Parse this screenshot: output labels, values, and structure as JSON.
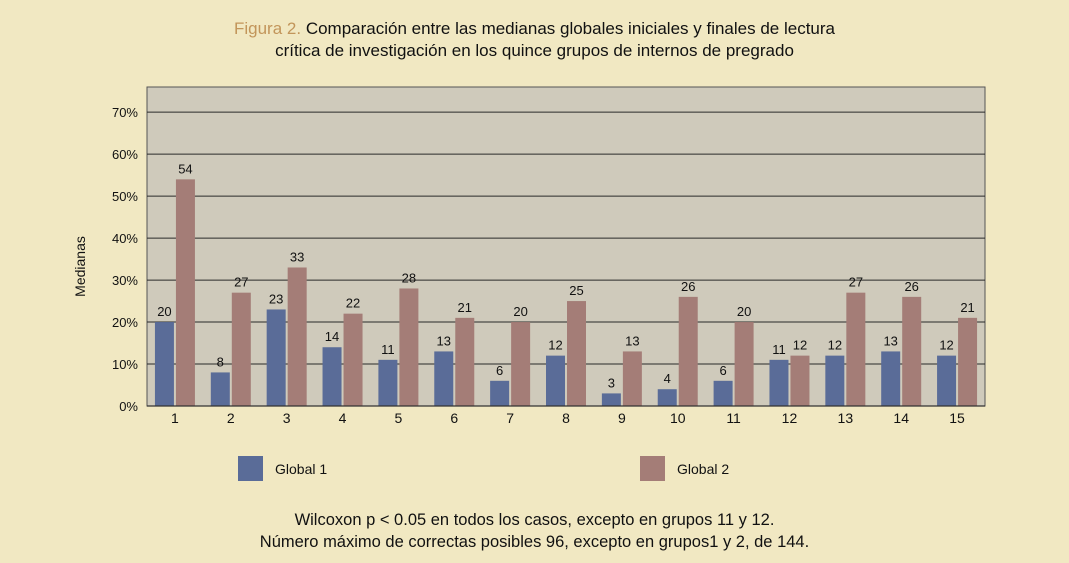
{
  "title": {
    "figure_label": "Figura 2.",
    "line1": "Comparación entre las medianas globales iniciales y finales de lectura",
    "line2": "crítica de investigación en los quince grupos de internos de pregrado"
  },
  "colors": {
    "background": "#f1e8c2",
    "plot_bg": "#cfcabb",
    "gridline": "#2a2a2a",
    "series1": "#5a6c98",
    "series2": "#a47d77",
    "figure_label": "#c2955a"
  },
  "chart_data": {
    "type": "bar",
    "ylabel": "Medianas",
    "xlabel": "",
    "ylim": [
      0,
      76
    ],
    "yticks": [
      0,
      10,
      20,
      30,
      40,
      50,
      60,
      70
    ],
    "ytick_labels": [
      "0%",
      "10%",
      "20%",
      "30%",
      "40%",
      "50%",
      "60%",
      "70%"
    ],
    "categories": [
      "1",
      "2",
      "3",
      "4",
      "5",
      "6",
      "7",
      "8",
      "9",
      "10",
      "11",
      "12",
      "13",
      "14",
      "15"
    ],
    "series": [
      {
        "name": "Global 1",
        "values": [
          20,
          8,
          23,
          14,
          11,
          13,
          6,
          12,
          3,
          4,
          6,
          11,
          12,
          13,
          12
        ],
        "labels": [
          "20",
          "8",
          "23",
          "14",
          "11",
          "13",
          "6",
          "12",
          "3",
          "4",
          "6",
          "11",
          "12",
          "13",
          "12"
        ]
      },
      {
        "name": "Global 2",
        "values": [
          54,
          27,
          33,
          22,
          28,
          21,
          20,
          25,
          13,
          26,
          20,
          12,
          27,
          26,
          21
        ],
        "labels": [
          "54",
          "27",
          "33",
          "22",
          "28",
          "21",
          "20",
          "25",
          "13",
          "26",
          "20",
          "12",
          "27",
          "26",
          "21"
        ]
      }
    ],
    "legend_position": "bottom"
  },
  "notes": {
    "line1": "Wilcoxon p < 0.05 en todos los casos, excepto en grupos 11 y 12.",
    "line2": "Número máximo de correctas posibles 96, excepto en grupos1 y 2, de 144."
  }
}
